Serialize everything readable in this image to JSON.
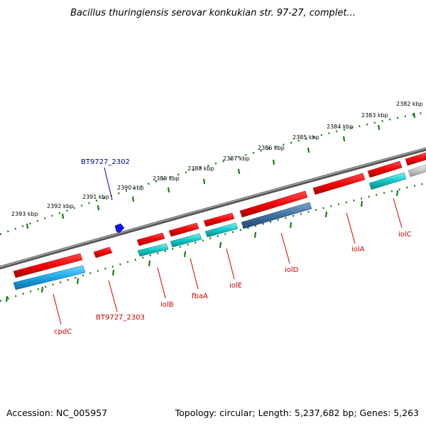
{
  "title": "Bacillus thuringiensis serovar konkukian str. 97-27, complet...",
  "footer": {
    "accession": "Accession: NC_005957",
    "topology": "Topology: circular; Length: 5,237,682 bp; Genes: 5,263"
  },
  "colors": {
    "forward_gene": "#ee1111",
    "reverse_gene_cyan": "#11c8c8",
    "reverse_gene_blue": "#1fa8e8",
    "reverse_gene_steel": "#3d6fa0",
    "reverse_gene_gray": "#c8c8c8",
    "backbone": "#7a7a7a",
    "ticks": "#1a7a1a",
    "label_red": "#cc0000",
    "label_blue": "#0000aa",
    "marker": "#1111ee"
  },
  "ticks": [
    {
      "label": "2393 kbp"
    },
    {
      "label": "2392 kbp"
    },
    {
      "label": "2391 kbp"
    },
    {
      "label": "2390 kbp"
    },
    {
      "label": "2389 kbp"
    },
    {
      "label": "2388 kbp"
    },
    {
      "label": "2387 kbp"
    },
    {
      "label": "2386 kbp"
    },
    {
      "label": "2385 kbp"
    },
    {
      "label": "2384 kbp"
    },
    {
      "label": "2383 kbp"
    },
    {
      "label": "2382 kbp"
    }
  ],
  "gene_labels": [
    {
      "label": "BT9727_2302",
      "color": "blue"
    },
    {
      "label": "cpdC",
      "color": "red"
    },
    {
      "label": "BT9727_2303",
      "color": "red"
    },
    {
      "label": "iolB",
      "color": "red"
    },
    {
      "label": "fbaA",
      "color": "red"
    },
    {
      "label": "iolE",
      "color": "red"
    },
    {
      "label": "iolD",
      "color": "red"
    },
    {
      "label": "iolA",
      "color": "red"
    },
    {
      "label": "iolC",
      "color": "red"
    }
  ]
}
